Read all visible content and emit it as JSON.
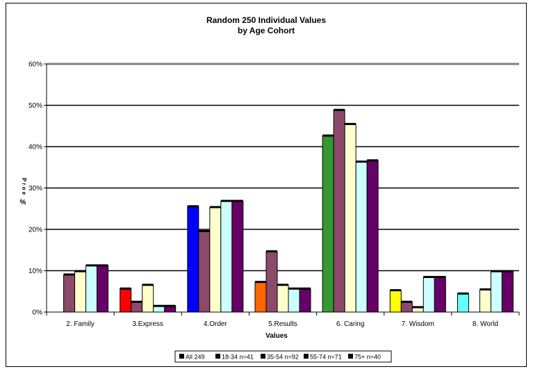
{
  "chart_data": {
    "type": "bar",
    "title": "Random 250 Individual Values",
    "subtitle": "by Age Cohort",
    "xlabel": "Values",
    "ylabel": "%",
    "ylabel_stacked": "P r o  e",
    "ylim": [
      0,
      60
    ],
    "yticks": [
      0,
      10,
      20,
      30,
      40,
      50,
      60
    ],
    "ytick_labels": [
      "0%",
      "10%",
      "20%",
      "30%",
      "40%",
      "50%",
      "60%"
    ],
    "grid": true,
    "legend_position": "bottom",
    "categories": [
      "2. Family",
      "3.Express",
      "4.Order",
      "5.Results",
      "6. Caring",
      "7. Wisdom",
      "8. World"
    ],
    "series": [
      {
        "name": "All 249",
        "values": [
          0,
          5.6,
          25.5,
          7.2,
          42.6,
          5.2,
          4.4
        ]
      },
      {
        "name": "18-34 n=41",
        "values": [
          9.0,
          2.4,
          19.5,
          14.6,
          48.8,
          2.4,
          0
        ]
      },
      {
        "name": "35-54 n=92",
        "values": [
          9.8,
          6.5,
          25.3,
          6.5,
          45.4,
          1.1,
          5.4
        ]
      },
      {
        "name": "55-74 n=71",
        "values": [
          11.2,
          1.4,
          26.8,
          5.6,
          36.3,
          8.4,
          9.8
        ]
      },
      {
        "name": "75+ n=40",
        "values": [
          11.2,
          1.4,
          26.8,
          5.6,
          36.6,
          8.4,
          9.8
        ]
      }
    ],
    "colors": {
      "series": [
        "#0000ff",
        "#8c4a6b",
        "#ffffcc",
        "#ccffff",
        "#660066"
      ],
      "all_by_category": [
        "#0000ff",
        "#ff0000",
        "#0000ff",
        "#ff6600",
        "#339933",
        "#ffff00",
        "#66ffff"
      ],
      "grid": "#000000",
      "plot_top_border": "#808080"
    }
  }
}
